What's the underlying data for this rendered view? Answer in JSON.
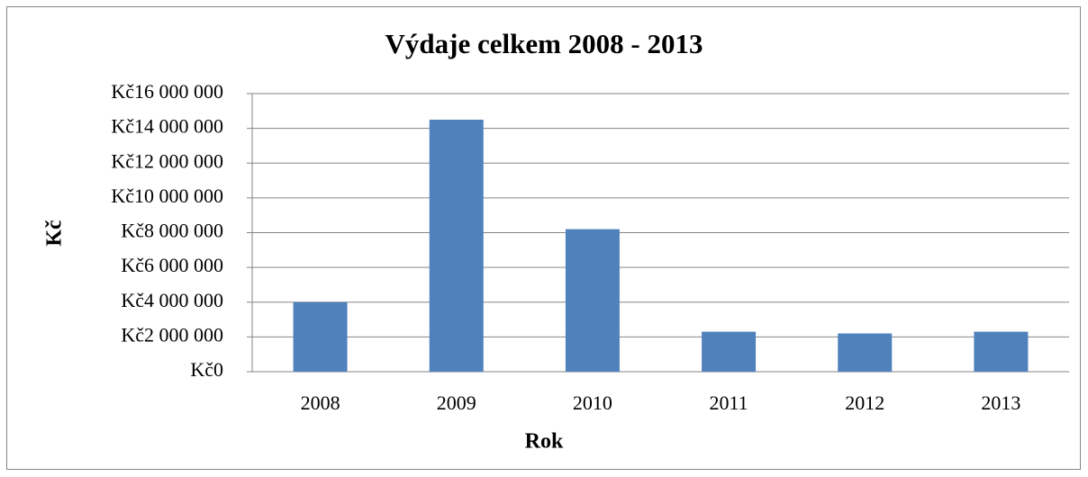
{
  "chart_data": {
    "type": "bar",
    "title": "Výdaje celkem 2008 - 2013",
    "x_label": "Rok",
    "y_label": "Kč",
    "categories": [
      "2008",
      "2009",
      "2010",
      "2011",
      "2012",
      "2013"
    ],
    "values": [
      4000000,
      14500000,
      8200000,
      2300000,
      2200000,
      2300000
    ],
    "color": "#4f81bd",
    "ylim": [
      0,
      16000000
    ],
    "yticks": [
      {
        "value": 0,
        "label": "Kč0"
      },
      {
        "value": 2000000,
        "label": "Kč2 000 000"
      },
      {
        "value": 4000000,
        "label": "Kč4 000 000"
      },
      {
        "value": 6000000,
        "label": "Kč6 000 000"
      },
      {
        "value": 8000000,
        "label": "Kč8 000 000"
      },
      {
        "value": 10000000,
        "label": "Kč10 000 000"
      },
      {
        "value": 12000000,
        "label": "Kč12 000 000"
      },
      {
        "value": 14000000,
        "label": "Kč14 000 000"
      },
      {
        "value": 16000000,
        "label": "Kč16 000 000"
      }
    ],
    "grid": true
  }
}
